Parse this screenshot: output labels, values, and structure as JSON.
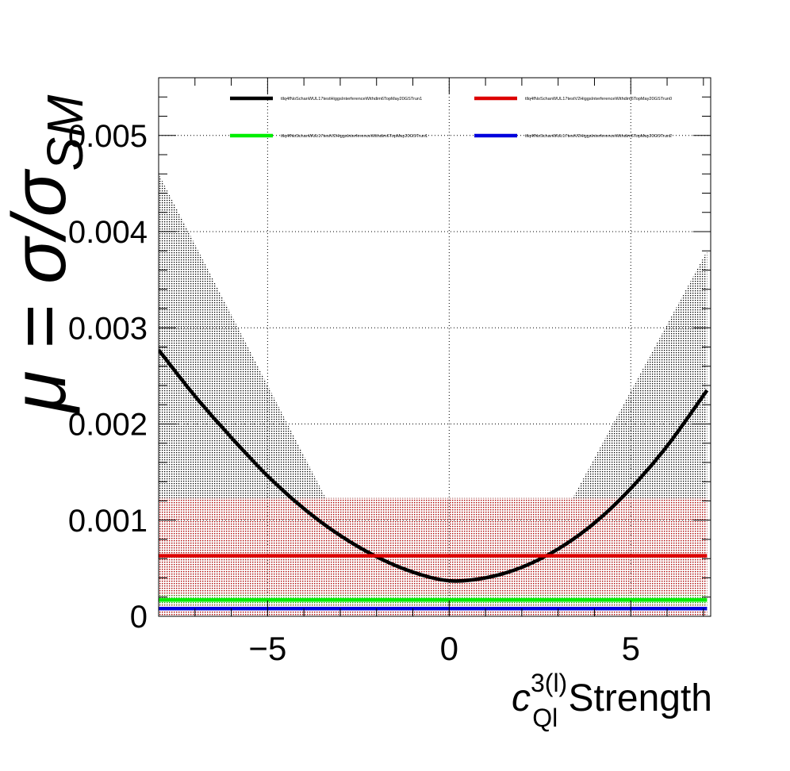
{
  "chart_data": {
    "type": "line",
    "ylabel": "μ = σ/σ",
    "ylabel_sub": "SM",
    "xlabel_base": "c",
    "xlabel_sup": "3(l)",
    "xlabel_sub": "Ql",
    "xlabel_rest": " Strength",
    "xlim": [
      -8,
      7.2
    ],
    "ylim": [
      0,
      0.0056
    ],
    "grid": true,
    "legend_placement": "top",
    "x_ticks": [
      {
        "value": -5,
        "label": "−5"
      },
      {
        "value": 0,
        "label": "0"
      },
      {
        "value": 5,
        "label": "5"
      }
    ],
    "y_ticks": [
      {
        "value": 0,
        "label": "0"
      },
      {
        "value": 0.001,
        "label": "0.001"
      },
      {
        "value": 0.002,
        "label": "0.002"
      },
      {
        "value": 0.003,
        "label": "0.003"
      },
      {
        "value": 0.004,
        "label": "0.004"
      },
      {
        "value": 0.005,
        "label": "0.005"
      }
    ],
    "series": [
      {
        "name": "tllq4fNoSchanWUL17testHiggsInterferenceWithdim6TopMay20GSTrun1",
        "color": "#000000",
        "x": [
          -8,
          -7,
          -6,
          -5,
          -4,
          -3,
          -2,
          -1,
          0,
          1,
          2,
          3,
          4,
          5,
          6,
          7.1
        ],
        "y": [
          0.00277,
          0.00229,
          0.00186,
          0.00146,
          0.00112,
          0.00084,
          0.00062,
          0.00046,
          0.00037,
          0.0004,
          0.00051,
          0.0007,
          0.00097,
          0.00133,
          0.00177,
          0.00235
        ],
        "band": {
          "lower_y": 0.0,
          "upper_x": [
            -8,
            -3.4,
            3.4,
            7.1
          ],
          "upper_y": [
            0.0046,
            0.00123,
            0.00123,
            0.0038
          ]
        }
      },
      {
        "name": "tllq4fNoSchanWUL17testV2HiggsInterferenceWithdim6TopMay20GSTrun0",
        "color": "#dd0000",
        "x": [
          -8,
          7.1
        ],
        "y": [
          0.00063,
          0.00063
        ],
        "band": {
          "lower_y": 0.0,
          "upper_y": 0.00123
        }
      },
      {
        "name": "tllq4fNoSchanWUL17testV2HiggsInterferenceWithdim6TopMay20GSTrun1",
        "color": "#00ee00",
        "x": [
          -8,
          7.1
        ],
        "y": [
          0.00017,
          0.00017
        ],
        "band": {
          "lower_y": 0.00012,
          "upper_y": 0.00022
        }
      },
      {
        "name": "tllq4fNoSchanWUL17testV2HiggsInterferenceWithdim6TopMay20GSTrun2",
        "color": "#0000dd",
        "x": [
          -8,
          7.1
        ],
        "y": [
          8e-05,
          8e-05
        ],
        "band": {
          "lower_y": 5e-05,
          "upper_y": 0.00011
        }
      }
    ]
  }
}
